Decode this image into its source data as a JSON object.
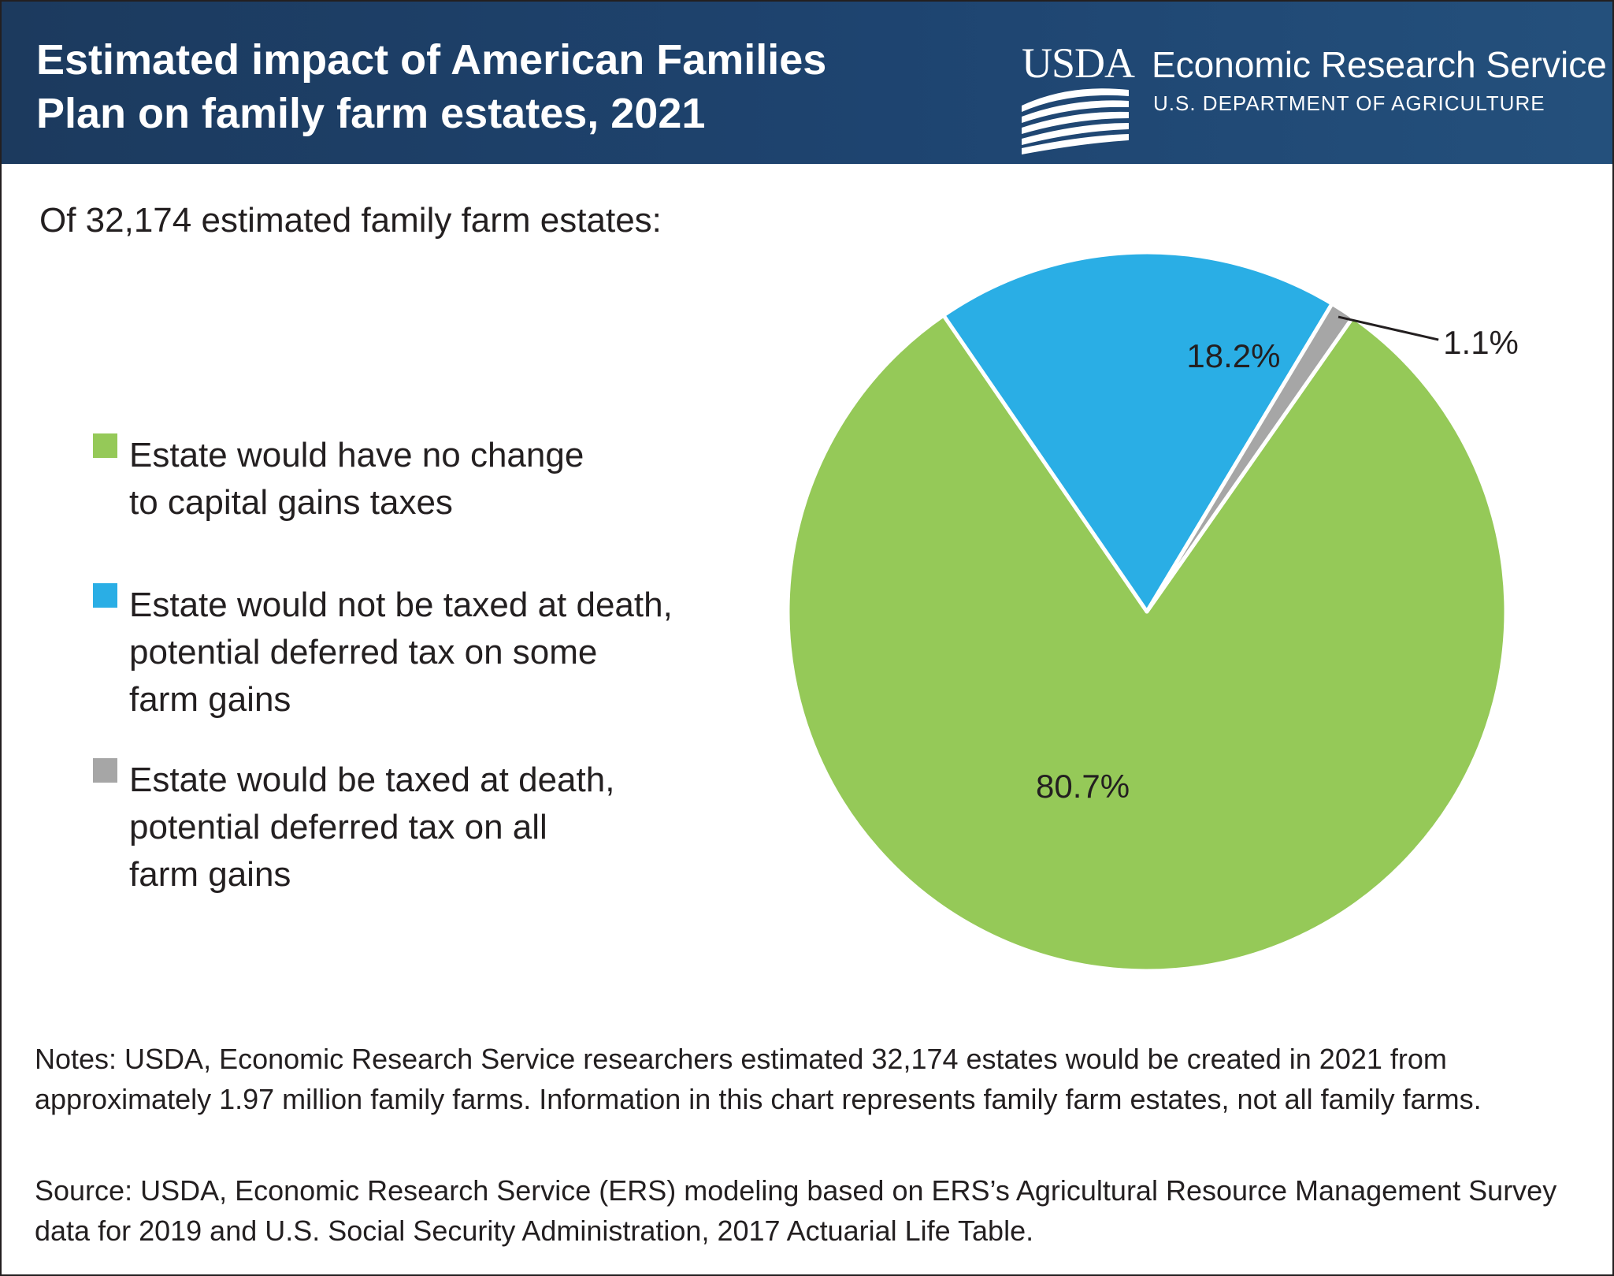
{
  "header": {
    "title_line1": "Estimated impact of American Families",
    "title_line2": "Plan on family farm estates, 2021",
    "logo_text": "USDA",
    "agency_name": "Economic Research Service",
    "department": "U.S. DEPARTMENT OF AGRICULTURE",
    "background_color": "#1e4470"
  },
  "subtitle": "Of 32,174 estimated family farm estates:",
  "legend": [
    {
      "line1": "Estate would have no change",
      "line2": "to capital gains taxes",
      "line3": "",
      "color": "#95c958"
    },
    {
      "line1": "Estate would not be taxed at death,",
      "line2": "potential deferred tax on some",
      "line3": "farm gains",
      "color": "#2aaee5"
    },
    {
      "line1": "Estate would be taxed at death,",
      "line2": "potential deferred tax on all",
      "line3": "farm gains",
      "color": "#a6a6a6"
    }
  ],
  "chart_data": {
    "type": "pie",
    "title": "Estimated impact of American Families Plan on family farm estates, 2021",
    "subtitle": "Of 32,174 estimated family farm estates:",
    "start_angle_deg": 55,
    "slices": [
      {
        "name": "Estate would have no change to capital gains taxes",
        "value": 80.7,
        "label": "80.7%",
        "color": "#95c958"
      },
      {
        "name": "Estate would not be taxed at death, potential deferred tax on some farm gains",
        "value": 18.2,
        "label": "18.2%",
        "color": "#2aaee5"
      },
      {
        "name": "Estate would be taxed at death, potential deferred tax on all farm gains",
        "value": 1.1,
        "label": "1.1%",
        "color": "#a6a6a6"
      }
    ]
  },
  "notes": "Notes: USDA, Economic Research Service researchers estimated 32,174 estates would be created in 2021 from approximately 1.97 million family farms. Information in this chart represents family farm estates, not all family farms.",
  "source": "Source: USDA, Economic Research Service (ERS) modeling based on ERS’s Agricultural Resource Management Survey data for 2019 and U.S. Social Security Administration, 2017 Actuarial Life Table."
}
